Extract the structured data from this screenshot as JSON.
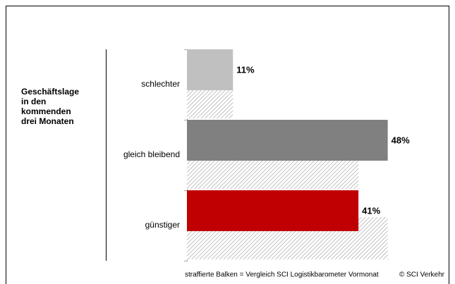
{
  "chart_data": {
    "type": "hbar-compare",
    "ylabel_lines": [
      "Geschäftslage",
      "in den",
      "kommenden",
      "drei Monaten"
    ],
    "categories": [
      "schlechter",
      "gleich bleibend",
      "günstiger"
    ],
    "series": [
      {
        "colors": [
          "#c0c0c0",
          "#808080",
          "#c00000"
        ],
        "values": [
          11,
          48,
          41
        ],
        "value_labels": [
          "11%",
          "48%",
          "41%"
        ]
      },
      {
        "pattern": "hatch",
        "color": "#9a9a9a",
        "values": [
          11,
          41,
          48
        ]
      }
    ],
    "footnote": "straffierte Balken = Vergleich SCI Logistikbarometer Vormonat",
    "source": "© SCI Verkehr"
  }
}
